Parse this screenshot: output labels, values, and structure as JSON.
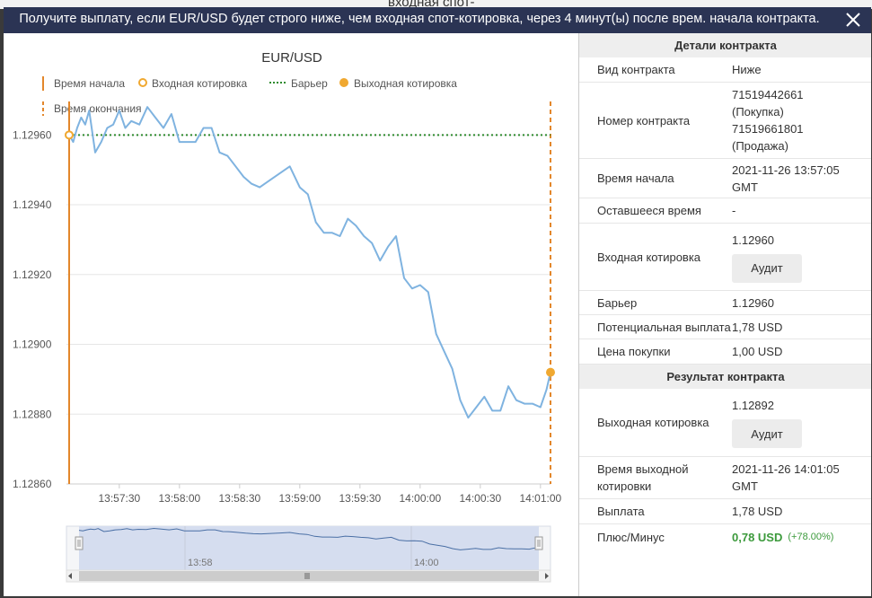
{
  "background_title_fragment": "входная спот-",
  "header": {
    "title": "Получите выплату, если EUR/USD будет строго ниже, чем входная спот-котировка, через 4 минут(ы) после врем. начала контракта."
  },
  "legend": {
    "start_time": "Время начала",
    "entry_quote": "Входная котировка",
    "barrier": "Барьер",
    "exit_quote": "Выходная котировка",
    "end_time": "Время окончания"
  },
  "navigator": {
    "labels": [
      "13:58",
      "14:00"
    ]
  },
  "chart_data": {
    "type": "line",
    "title": "EUR/USD",
    "xlabel": "",
    "ylabel": "",
    "x_ticks": [
      "13:57:30",
      "13:58:00",
      "13:58:30",
      "13:59:00",
      "13:59:30",
      "14:00:00",
      "14:00:30",
      "14:01:00"
    ],
    "y_ticks": [
      "1.12860",
      "1.12880",
      "1.12900",
      "1.12920",
      "1.12940",
      "1.12960"
    ],
    "ylim": [
      1.1286,
      1.12966
    ],
    "grid": true,
    "start_time": "13:57:05",
    "end_time": "14:01:05",
    "barrier": 1.1296,
    "entry_quote": 1.1296,
    "exit_quote": 1.12892,
    "series": [
      {
        "name": "",
        "x": [
          "13:57:05",
          "13:57:07",
          "13:57:09",
          "13:57:11",
          "13:57:13",
          "13:57:15",
          "13:57:18",
          "13:57:21",
          "13:57:24",
          "13:57:27",
          "13:57:30",
          "13:57:33",
          "13:57:36",
          "13:57:40",
          "13:57:44",
          "13:57:48",
          "13:57:52",
          "13:57:56",
          "13:58:00",
          "13:58:04",
          "13:58:08",
          "13:58:12",
          "13:58:16",
          "13:58:20",
          "13:58:24",
          "13:58:28",
          "13:58:32",
          "13:58:36",
          "13:58:40",
          "13:58:45",
          "13:58:50",
          "13:58:55",
          "13:59:00",
          "13:59:04",
          "13:59:08",
          "13:59:12",
          "13:59:16",
          "13:59:20",
          "13:59:24",
          "13:59:28",
          "13:59:32",
          "13:59:36",
          "13:59:40",
          "13:59:44",
          "13:59:48",
          "13:59:52",
          "13:59:56",
          "14:00:00",
          "14:00:04",
          "14:00:08",
          "14:00:12",
          "14:00:16",
          "14:00:20",
          "14:00:24",
          "14:00:28",
          "14:00:32",
          "14:00:36",
          "14:00:40",
          "14:00:44",
          "14:00:48",
          "14:00:52",
          "14:00:56",
          "14:01:00",
          "14:01:03",
          "14:01:05"
        ],
        "values": [
          1.1296,
          1.12958,
          1.12962,
          1.12965,
          1.12963,
          1.12967,
          1.12955,
          1.12958,
          1.12962,
          1.12963,
          1.12967,
          1.12962,
          1.12964,
          1.12963,
          1.12968,
          1.12965,
          1.12962,
          1.12966,
          1.12958,
          1.12958,
          1.12958,
          1.12962,
          1.12962,
          1.12955,
          1.12954,
          1.12951,
          1.12948,
          1.12946,
          1.12945,
          1.12947,
          1.12949,
          1.12951,
          1.12945,
          1.12943,
          1.12935,
          1.12932,
          1.12932,
          1.12931,
          1.12936,
          1.12934,
          1.12931,
          1.12929,
          1.12924,
          1.12928,
          1.12931,
          1.12919,
          1.12916,
          1.12917,
          1.12915,
          1.12903,
          1.12898,
          1.12893,
          1.12884,
          1.12879,
          1.12882,
          1.12885,
          1.12881,
          1.12881,
          1.12888,
          1.12884,
          1.12883,
          1.12883,
          1.12882,
          1.12887,
          1.12892
        ]
      }
    ]
  },
  "details": {
    "section_title": "Детали контракта",
    "rows": [
      {
        "label": "Вид контракта",
        "value": "Ниже"
      },
      {
        "label": "Номер контракта",
        "value_lines": [
          "71519442661",
          "(Покупка)",
          "71519661801",
          "(Продажа)"
        ]
      },
      {
        "label": "Время начала",
        "value_lines": [
          "2021-11-26 13:57:05",
          "GMT"
        ]
      },
      {
        "label": "Оставшееся время",
        "value": "-"
      },
      {
        "label": "Входная котировка",
        "value": "1.12960",
        "button": "Аудит"
      },
      {
        "label": "Барьер",
        "value": "1.12960"
      },
      {
        "label": "Потенциальная выплата",
        "value": "1,78 USD"
      },
      {
        "label": "Цена покупки",
        "value": "1,00 USD"
      }
    ]
  },
  "result": {
    "section_title": "Результат контракта",
    "exit_quote": {
      "label": "Выходная котировка",
      "value": "1.12892",
      "button": "Аудит"
    },
    "exit_time": {
      "label_lines": [
        "Время выходной",
        "котировки"
      ],
      "value_lines": [
        "2021-11-26 14:01:05",
        "GMT"
      ]
    },
    "payout": {
      "label": "Выплата",
      "value": "1,78 USD"
    },
    "profit": {
      "label": "Плюс/Минус",
      "value": "0,78 USD",
      "percent": "(+78.00%)"
    }
  },
  "colors": {
    "header_bg": "#2b3454",
    "line": "#7fb3e0",
    "start_line": "#e3872b",
    "barrier": "#2e8b2e",
    "marker": "#f0a830",
    "profit": "#3c9a3c"
  }
}
